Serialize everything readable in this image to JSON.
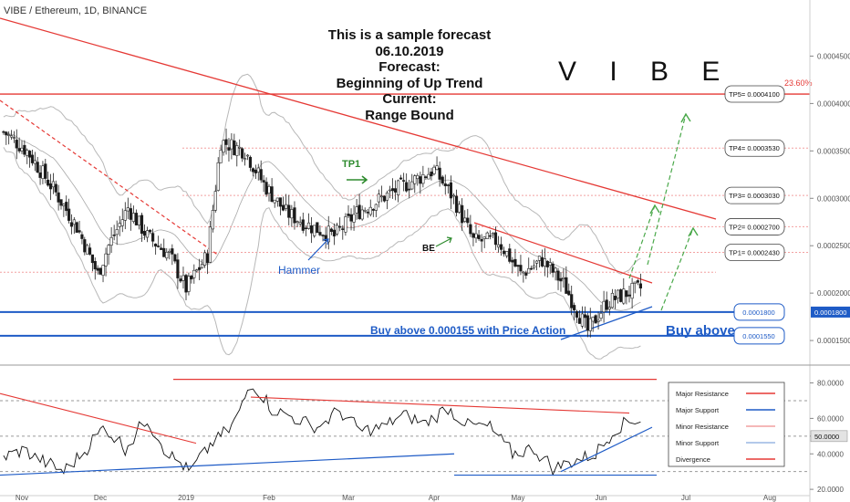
{
  "title": "VIBE / Ethereum, 1D, BINANCE",
  "symbol": "V I B E",
  "forecast_lines": [
    "This is a sample forecast",
    "06.10.2019",
    "Forecast:",
    "Beginning of Up Trend",
    "Current:",
    "Range Bound"
  ],
  "annotations": {
    "tp1": "TP1",
    "be": "BE",
    "hammer": "Hammer",
    "buy_note": "Buy above 0.000155 with Price Action",
    "buy_above": "Buy above",
    "fib": "23.60%"
  },
  "targets": [
    {
      "label": "TP5= 0.0004100",
      "value": 0.00041
    },
    {
      "label": "TP4= 0.0003530",
      "value": 0.000353
    },
    {
      "label": "TP3= 0.0003030",
      "value": 0.000303
    },
    {
      "label": "TP2= 0.0002700",
      "value": 0.00027
    },
    {
      "label": "TP1= 0.0002430",
      "value": 0.000243
    }
  ],
  "supports": [
    {
      "label": "0.0001800",
      "value": 0.00018
    },
    {
      "label": "0.0001550",
      "value": 0.000155
    }
  ],
  "legend": [
    "Major Resistance",
    "Major Support",
    "Minor Resistance",
    "Minor Support",
    "Divergence"
  ],
  "colors": {
    "resistance": "#e53935",
    "support": "#1e5bc6",
    "minor_res": "#f2a0a0",
    "green": "#2e8b2e",
    "up": "#ffffff",
    "down": "#1a1a1a",
    "bb": "#b8b8b8"
  },
  "chart_data": [
    {
      "type": "candlestick",
      "title": "VIBE / Ethereum, 1D, BINANCE",
      "x_tick_labels": [
        "Nov",
        "Dec",
        "2019",
        "Feb",
        "Mar",
        "Apr",
        "May",
        "Jun",
        "Jul",
        "Aug"
      ],
      "y_tick_labels": [
        "0.0004500",
        "0.0004000",
        "0.0003500",
        "0.0003000",
        "0.0002500",
        "0.0002000",
        "0.0001500"
      ],
      "ylim": [
        0.000126,
        0.000488
      ],
      "current_price_label": "0.0001800",
      "close_series": [
        {
          "date": "2018-10-25",
          "close": 0.00037
        },
        {
          "date": "2018-11-03",
          "close": 0.00035
        },
        {
          "date": "2018-11-13",
          "close": 0.00031
        },
        {
          "date": "2018-11-22",
          "close": 0.00027
        },
        {
          "date": "2018-11-30",
          "close": 0.00022
        },
        {
          "date": "2018-12-04",
          "close": 0.00025
        },
        {
          "date": "2018-12-11",
          "close": 0.00029
        },
        {
          "date": "2018-12-18",
          "close": 0.00026
        },
        {
          "date": "2018-12-26",
          "close": 0.00024
        },
        {
          "date": "2019-01-01",
          "close": 0.000205
        },
        {
          "date": "2019-01-09",
          "close": 0.00024
        },
        {
          "date": "2019-01-14",
          "close": 0.00036
        },
        {
          "date": "2019-01-23",
          "close": 0.00035
        },
        {
          "date": "2019-01-30",
          "close": 0.000315
        },
        {
          "date": "2019-02-07",
          "close": 0.000285
        },
        {
          "date": "2019-02-16",
          "close": 0.00027
        },
        {
          "date": "2019-02-24",
          "close": 0.00026
        },
        {
          "date": "2019-03-04",
          "close": 0.000285
        },
        {
          "date": "2019-03-13",
          "close": 0.0003
        },
        {
          "date": "2019-03-22",
          "close": 0.000315
        },
        {
          "date": "2019-04-01",
          "close": 0.00033
        },
        {
          "date": "2019-04-08",
          "close": 0.0003
        },
        {
          "date": "2019-04-15",
          "close": 0.000255
        },
        {
          "date": "2019-04-24",
          "close": 0.000255
        },
        {
          "date": "2019-05-02",
          "close": 0.00022
        },
        {
          "date": "2019-05-10",
          "close": 0.000235
        },
        {
          "date": "2019-05-18",
          "close": 0.00021
        },
        {
          "date": "2019-05-27",
          "close": 0.00016
        },
        {
          "date": "2019-06-03",
          "close": 0.00019
        },
        {
          "date": "2019-06-10",
          "close": 0.0002
        },
        {
          "date": "2019-06-15",
          "close": 0.000205
        }
      ]
    },
    {
      "type": "line",
      "title": "",
      "series": [
        {
          "values": [
            38,
            42,
            36,
            30,
            41,
            55,
            43,
            60,
            40,
            30,
            45,
            55,
            80,
            65,
            60,
            55,
            64,
            53,
            55,
            62,
            57,
            66,
            56,
            55,
            40,
            43,
            32,
            36,
            40,
            55,
            60
          ]
        }
      ],
      "y_tick_labels": [
        "80.0000",
        "60.0000",
        "50.0000",
        "40.0000",
        "20.0000"
      ],
      "ylim": [
        18,
        88
      ],
      "reference_lines": [
        30,
        50,
        70
      ],
      "current_value_label": "50.0000"
    }
  ]
}
